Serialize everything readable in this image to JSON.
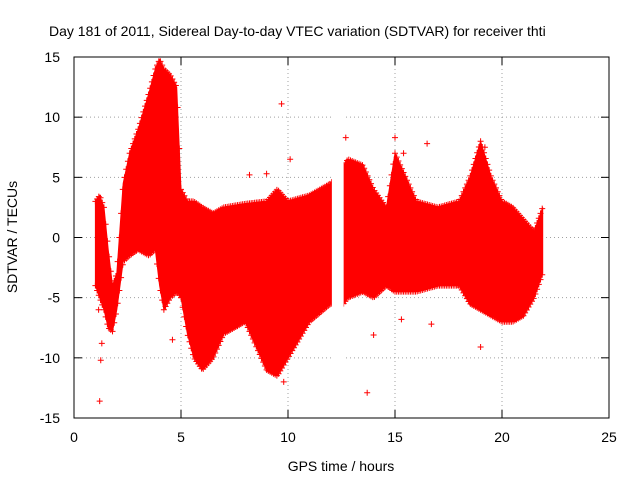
{
  "chart_data": {
    "type": "scatter",
    "title": "Day 181 of 2011, Sidereal Day-to-day VTEC variation (SDTVAR) for receiver thti",
    "xlabel": "GPS time / hours",
    "ylabel": "SDTVAR / TECUs",
    "xlim": [
      0,
      25
    ],
    "ylim": [
      -15,
      15
    ],
    "xticks": [
      0,
      5,
      10,
      15,
      20,
      25
    ],
    "yticks": [
      -15,
      -10,
      -5,
      0,
      5,
      10,
      15
    ],
    "grid": true,
    "marker": "+",
    "series_color": "#ff0000",
    "envelope": {
      "x": [
        1.0,
        1.2,
        1.4,
        1.6,
        1.8,
        2.0,
        2.3,
        2.6,
        3.0,
        3.5,
        3.8,
        4.0,
        4.2,
        4.5,
        4.8,
        5.0,
        5.3,
        5.6,
        6.0,
        6.5,
        7.0,
        8.0,
        9.0,
        9.5,
        10.0,
        11.0,
        12.0,
        12.6,
        12.8,
        13.5,
        14.0,
        14.6,
        15.0,
        15.5,
        16.0,
        17.0,
        18.0,
        18.5,
        19.0,
        19.5,
        20.0,
        20.5,
        21.0,
        21.5,
        21.9
      ],
      "upper": [
        3.0,
        3.5,
        2.5,
        -1.0,
        -4.0,
        -3.0,
        4.5,
        7.0,
        9.0,
        12.0,
        14.0,
        14.8,
        14.0,
        13.5,
        12.5,
        4.0,
        3.0,
        3.0,
        2.5,
        2.0,
        2.5,
        2.8,
        3.0,
        4.0,
        3.0,
        3.5,
        4.5,
        6.0,
        6.5,
        6.0,
        4.0,
        2.5,
        7.0,
        5.0,
        3.0,
        2.5,
        3.0,
        5.0,
        8.0,
        5.0,
        3.0,
        2.5,
        1.5,
        0.5,
        2.5
      ],
      "lower": [
        -4.0,
        -5.0,
        -6.0,
        -7.5,
        -7.8,
        -6.0,
        -2.0,
        -1.5,
        -1.0,
        -1.5,
        -1.0,
        -4.0,
        -6.0,
        -5.0,
        -4.5,
        -5.0,
        -8.0,
        -10.0,
        -11.0,
        -10.0,
        -8.0,
        -7.0,
        -11.0,
        -11.5,
        -10.0,
        -7.0,
        -5.5,
        -5.5,
        -5.0,
        -4.5,
        -5.0,
        -4.0,
        -4.5,
        -4.5,
        -4.5,
        -4.0,
        -4.0,
        -5.5,
        -6.0,
        -6.5,
        -7.0,
        -7.0,
        -6.5,
        -5.0,
        -3.0
      ]
    },
    "outliers": [
      {
        "x": 1.2,
        "y": -13.6
      },
      {
        "x": 1.25,
        "y": -10.2
      },
      {
        "x": 1.3,
        "y": -8.8
      },
      {
        "x": 1.15,
        "y": -6.0
      },
      {
        "x": 4.6,
        "y": -8.5
      },
      {
        "x": 8.2,
        "y": 5.2
      },
      {
        "x": 9.0,
        "y": 5.3
      },
      {
        "x": 9.7,
        "y": 11.1
      },
      {
        "x": 9.8,
        "y": -12.0
      },
      {
        "x": 10.1,
        "y": 6.5
      },
      {
        "x": 12.7,
        "y": 8.3
      },
      {
        "x": 13.3,
        "y": 5.5
      },
      {
        "x": 13.7,
        "y": -12.9
      },
      {
        "x": 14.0,
        "y": -8.1
      },
      {
        "x": 15.0,
        "y": 8.3
      },
      {
        "x": 15.4,
        "y": 7.0
      },
      {
        "x": 15.3,
        "y": -6.8
      },
      {
        "x": 16.5,
        "y": 7.8
      },
      {
        "x": 16.7,
        "y": -7.2
      },
      {
        "x": 19.0,
        "y": -9.1
      },
      {
        "x": 19.2,
        "y": 7.5
      }
    ]
  }
}
